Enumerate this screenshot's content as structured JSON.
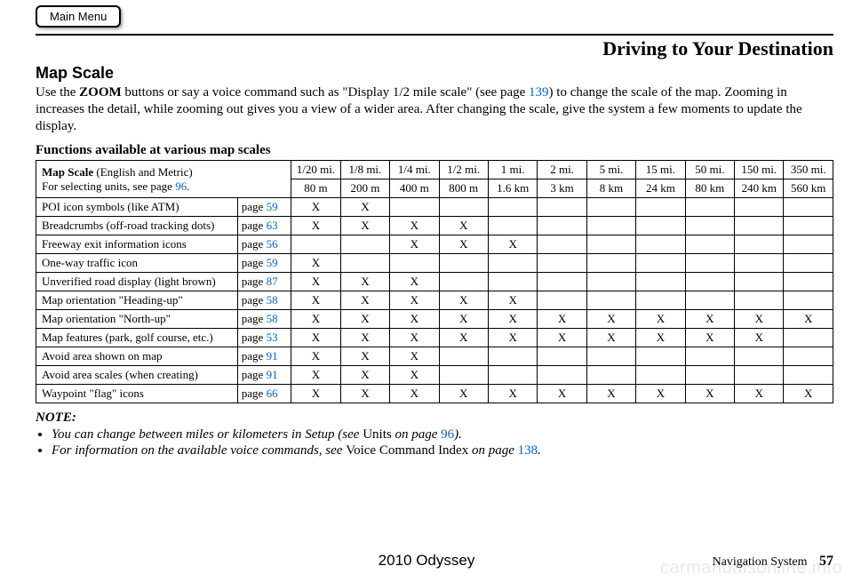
{
  "mainMenuLabel": "Main Menu",
  "chapterTitle": "Driving to Your Destination",
  "section": {
    "heading": "Map Scale",
    "body_pre": "Use the ",
    "body_bold": "ZOOM",
    "body_mid": " buttons or say a voice command such as \"Display 1/2 mile scale\" (see page ",
    "body_link": "139",
    "body_post": ") to change the scale of the map. Zooming in increases the detail, while zooming out gives you a view of a wider area. After changing the scale, give the system a few moments to update the display.",
    "subheading": "Functions available at various map scales"
  },
  "table": {
    "mapScaleLine1_pre": "Map Scale",
    "mapScaleLine1_post": " (English and Metric)",
    "mapScaleLine2_pre": "For selecting units, see page ",
    "mapScaleLine2_link": "96",
    "mapScaleLine2_post": ".",
    "headers_mi": [
      "1/20 mi.",
      "1/8 mi.",
      "1/4 mi.",
      "1/2 mi.",
      "1 mi.",
      "2 mi.",
      "5 mi.",
      "15 mi.",
      "50 mi.",
      "150 mi.",
      "350 mi."
    ],
    "headers_km": [
      "80 m",
      "200 m",
      "400 m",
      "800 m",
      "1.6 km",
      "3 km",
      "8 km",
      "24 km",
      "80 km",
      "240 km",
      "560 km"
    ],
    "rows": [
      {
        "label": "POI icon symbols (like ATM)",
        "page": "59",
        "marks": [
          "X",
          "X",
          "",
          "",
          "",
          "",
          "",
          "",
          "",
          "",
          ""
        ]
      },
      {
        "label": "Breadcrumbs (off-road tracking dots)",
        "page": "63",
        "marks": [
          "X",
          "X",
          "X",
          "X",
          "",
          "",
          "",
          "",
          "",
          "",
          ""
        ]
      },
      {
        "label": "Freeway exit information icons",
        "page": "56",
        "marks": [
          "",
          "",
          "X",
          "X",
          "X",
          "",
          "",
          "",
          "",
          "",
          ""
        ]
      },
      {
        "label": "One-way traffic icon",
        "page": "59",
        "marks": [
          "X",
          "",
          "",
          "",
          "",
          "",
          "",
          "",
          "",
          "",
          ""
        ]
      },
      {
        "label": "Unverified road display (light brown)",
        "page": "87",
        "marks": [
          "X",
          "X",
          "X",
          "",
          "",
          "",
          "",
          "",
          "",
          "",
          ""
        ]
      },
      {
        "label": "Map orientation \"Heading-up\"",
        "page": "58",
        "marks": [
          "X",
          "X",
          "X",
          "X",
          "X",
          "",
          "",
          "",
          "",
          "",
          ""
        ]
      },
      {
        "label": "Map orientation \"North-up\"",
        "page": "58",
        "marks": [
          "X",
          "X",
          "X",
          "X",
          "X",
          "X",
          "X",
          "X",
          "X",
          "X",
          "X"
        ]
      },
      {
        "label": "Map features (park, golf course, etc.)",
        "page": "53",
        "marks": [
          "X",
          "X",
          "X",
          "X",
          "X",
          "X",
          "X",
          "X",
          "X",
          "X",
          ""
        ]
      },
      {
        "label": "Avoid area shown on map",
        "page": "91",
        "marks": [
          "X",
          "X",
          "X",
          "",
          "",
          "",
          "",
          "",
          "",
          "",
          ""
        ]
      },
      {
        "label": "Avoid area scales (when creating)",
        "page": "91",
        "marks": [
          "X",
          "X",
          "X",
          "",
          "",
          "",
          "",
          "",
          "",
          "",
          ""
        ]
      },
      {
        "label": "Waypoint \"flag\" icons",
        "page": "66",
        "marks": [
          "X",
          "X",
          "X",
          "X",
          "X",
          "X",
          "X",
          "X",
          "X",
          "X",
          "X"
        ]
      }
    ]
  },
  "notes": {
    "heading": "NOTE:",
    "n1_pre": "You can change between miles or kilometers in Setup (see ",
    "n1_roman": "Units",
    "n1_mid": " on page ",
    "n1_link": "96",
    "n1_post": ").",
    "n2_pre": "For information on the available voice commands, see ",
    "n2_roman": "Voice Command Index",
    "n2_mid": " on page ",
    "n2_link": "138",
    "n2_post": "."
  },
  "footer": {
    "model": "2010 Odyssey",
    "bookPart": "Navigation System",
    "pageNumber": "57"
  },
  "watermark": "carmanualsonline.info",
  "linkColor": "#0066cc"
}
